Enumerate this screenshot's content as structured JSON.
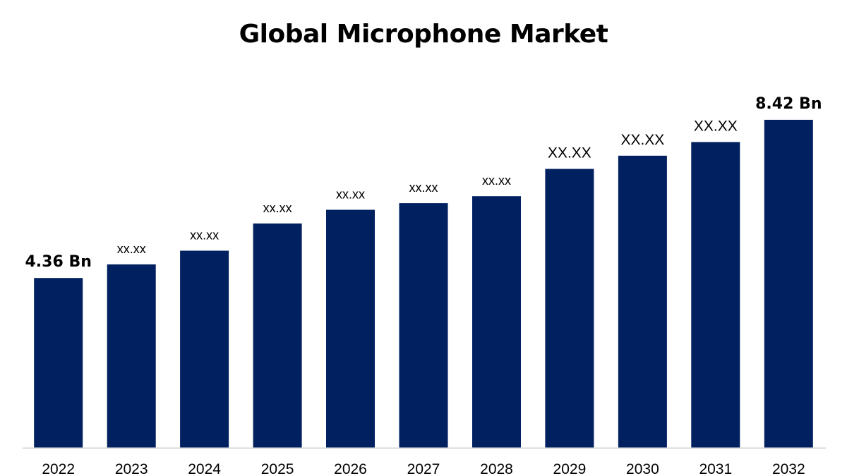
{
  "chart_data": {
    "type": "bar",
    "title": "Global Microphone Market",
    "categories": [
      "2022",
      "2023",
      "2024",
      "2025",
      "2026",
      "2027",
      "2028",
      "2029",
      "2030",
      "2031",
      "2032"
    ],
    "values": [
      4.36,
      4.71,
      5.06,
      5.76,
      6.11,
      6.28,
      6.46,
      7.16,
      7.5,
      7.85,
      8.42
    ],
    "data_labels": [
      "4.36 Bn",
      "xx.xx",
      "xx.xx",
      "xx.xx",
      "xx.xx",
      "xx.xx",
      "xx.xx",
      "XX.XX",
      "XX.XX",
      "XX.XX",
      "8.42 Bn"
    ],
    "ylim": [
      0,
      8.6
    ],
    "xlabel": "",
    "ylabel": "",
    "grid": false,
    "legend": "none",
    "bar_color": "#002060",
    "axis_color": "#d9d9d9"
  }
}
